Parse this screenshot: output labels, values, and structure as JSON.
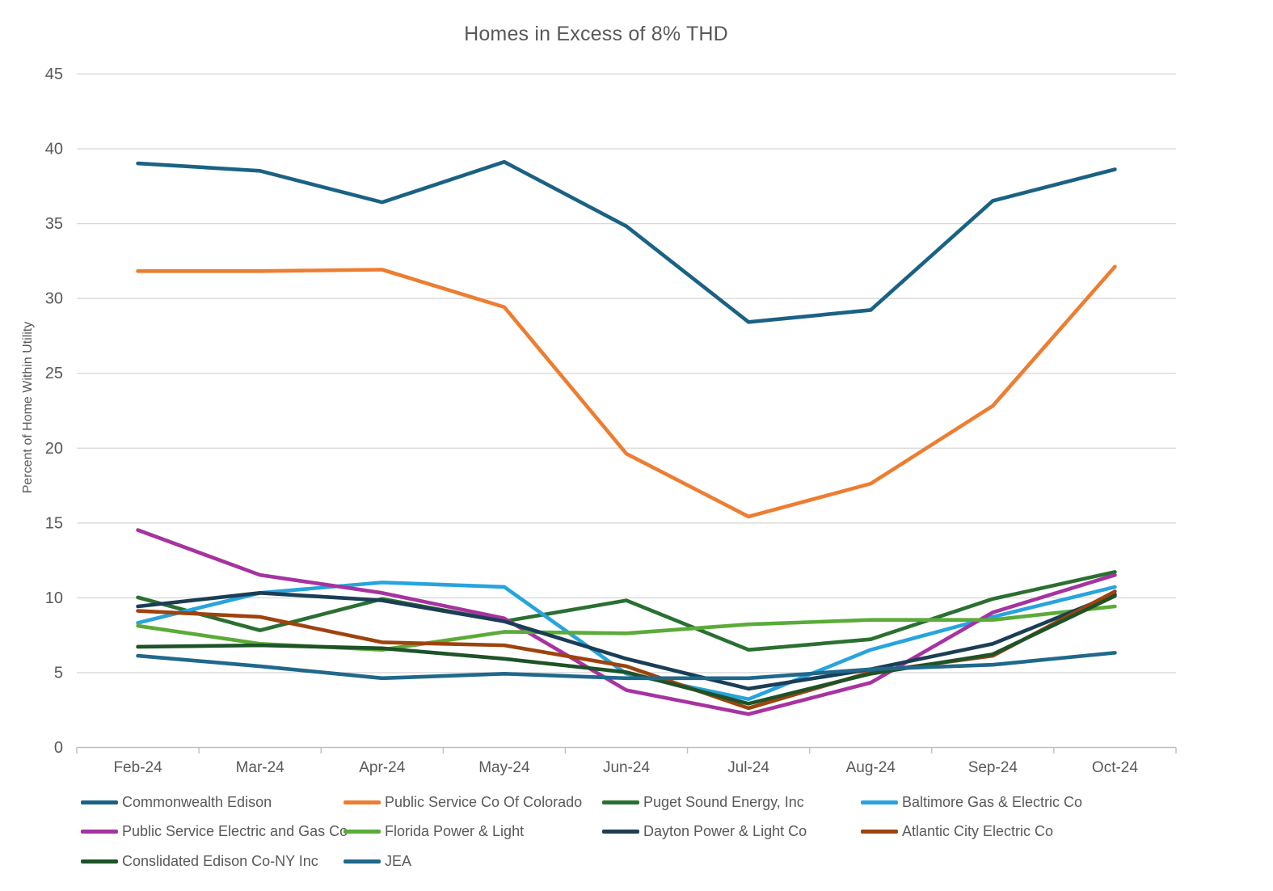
{
  "chart_data": {
    "type": "line",
    "title": "Homes in Excess of 8% THD",
    "xlabel": "",
    "ylabel": "Percent of Home Within Utility",
    "ylim": [
      0,
      45
    ],
    "ytick_step": 5,
    "yticks": [
      0,
      5,
      10,
      15,
      20,
      25,
      30,
      35,
      40,
      45
    ],
    "grid": true,
    "legend_position": "bottom",
    "categories": [
      "Feb-24",
      "Mar-24",
      "Apr-24",
      "May-24",
      "Jun-24",
      "Jul-24",
      "Aug-24",
      "Sep-24",
      "Oct-24"
    ],
    "series": [
      {
        "name": "Commonwealth Edison",
        "color": "#1A6284",
        "values": [
          39.0,
          38.5,
          36.4,
          39.1,
          34.8,
          28.4,
          29.2,
          36.5,
          38.6
        ]
      },
      {
        "name": "Public Service Co Of Colorado",
        "color": "#ED7D31",
        "values": [
          31.8,
          31.8,
          31.9,
          29.4,
          19.6,
          15.4,
          17.6,
          22.8,
          32.1
        ]
      },
      {
        "name": "Puget Sound Energy, Inc",
        "color": "#2A7031",
        "values": [
          10.0,
          7.8,
          9.9,
          8.4,
          9.8,
          6.5,
          7.2,
          9.9,
          11.7
        ]
      },
      {
        "name": "Baltimore Gas & Electric Co",
        "color": "#27A4DD",
        "values": [
          8.3,
          10.3,
          11.0,
          10.7,
          4.9,
          3.2,
          6.5,
          8.7,
          10.7
        ]
      },
      {
        "name": "Public Service Electric and Gas Co",
        "color": "#A633A0",
        "values": [
          14.5,
          11.5,
          10.3,
          8.6,
          3.8,
          2.2,
          4.3,
          9.0,
          11.5
        ]
      },
      {
        "name": "Florida Power & Light",
        "color": "#5BAB38",
        "values": [
          8.1,
          6.9,
          6.5,
          7.7,
          7.6,
          8.2,
          8.5,
          8.5,
          9.4
        ]
      },
      {
        "name": "Dayton Power & Light Co",
        "color": "#1A3E55",
        "values": [
          9.4,
          10.3,
          9.8,
          8.4,
          5.9,
          3.9,
          5.2,
          6.9,
          10.2
        ]
      },
      {
        "name": "Atlantic City Electric Co",
        "color": "#9E430E",
        "values": [
          9.1,
          8.7,
          7.0,
          6.8,
          5.4,
          2.6,
          5.0,
          6.1,
          10.4
        ]
      },
      {
        "name": "Conslidated Edison Co-NY Inc",
        "color": "#1D5327",
        "values": [
          6.7,
          6.8,
          6.6,
          5.9,
          5.0,
          2.9,
          4.9,
          6.2,
          10.1
        ]
      },
      {
        "name": "JEA",
        "color": "#20688C",
        "values": [
          6.1,
          5.4,
          4.6,
          4.9,
          4.6,
          4.6,
          5.2,
          5.5,
          6.3
        ]
      }
    ],
    "axis_colors": {
      "gridline": "#D9D9D9",
      "axis_line": "#BFBFBF",
      "tick": "#BFBFBF",
      "label_text": "#595959"
    }
  }
}
